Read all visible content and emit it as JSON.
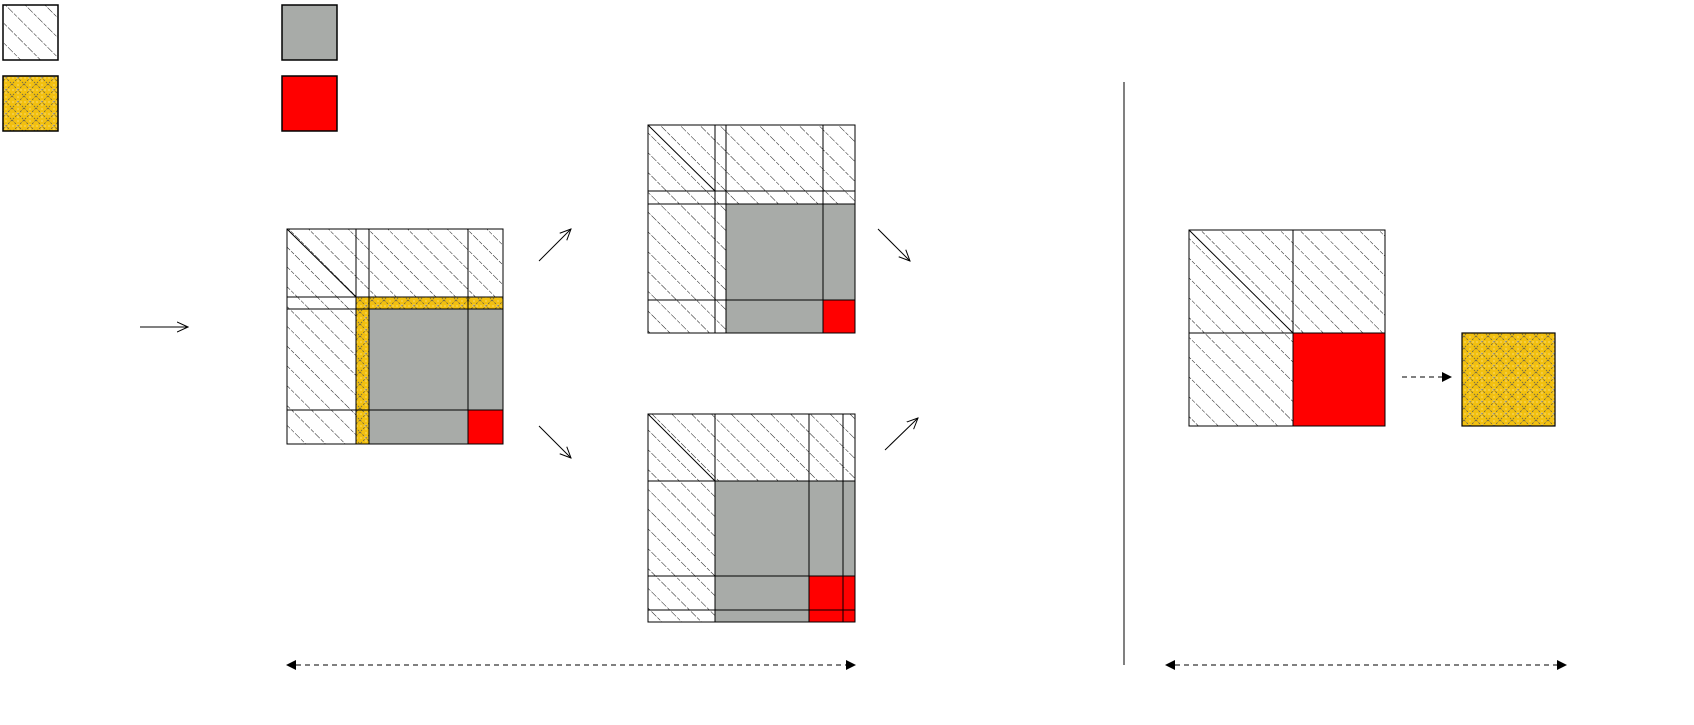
{
  "colors": {
    "gray": "#a8aba8",
    "red": "#ff0000",
    "yellow": "#f2c010",
    "line": "#000000",
    "hatch": "#000000",
    "background": "#ffffff"
  },
  "legend": [
    {
      "pattern": "hatch"
    },
    {
      "pattern": "gray"
    },
    {
      "pattern": "crosshatch"
    },
    {
      "pattern": "red"
    }
  ],
  "icons": [
    "arrow-right-icon",
    "arrow-up-right-icon",
    "arrow-down-right-icon",
    "dashed-arrow-right-icon",
    "double-headed-dashed-arrow-icon"
  ]
}
